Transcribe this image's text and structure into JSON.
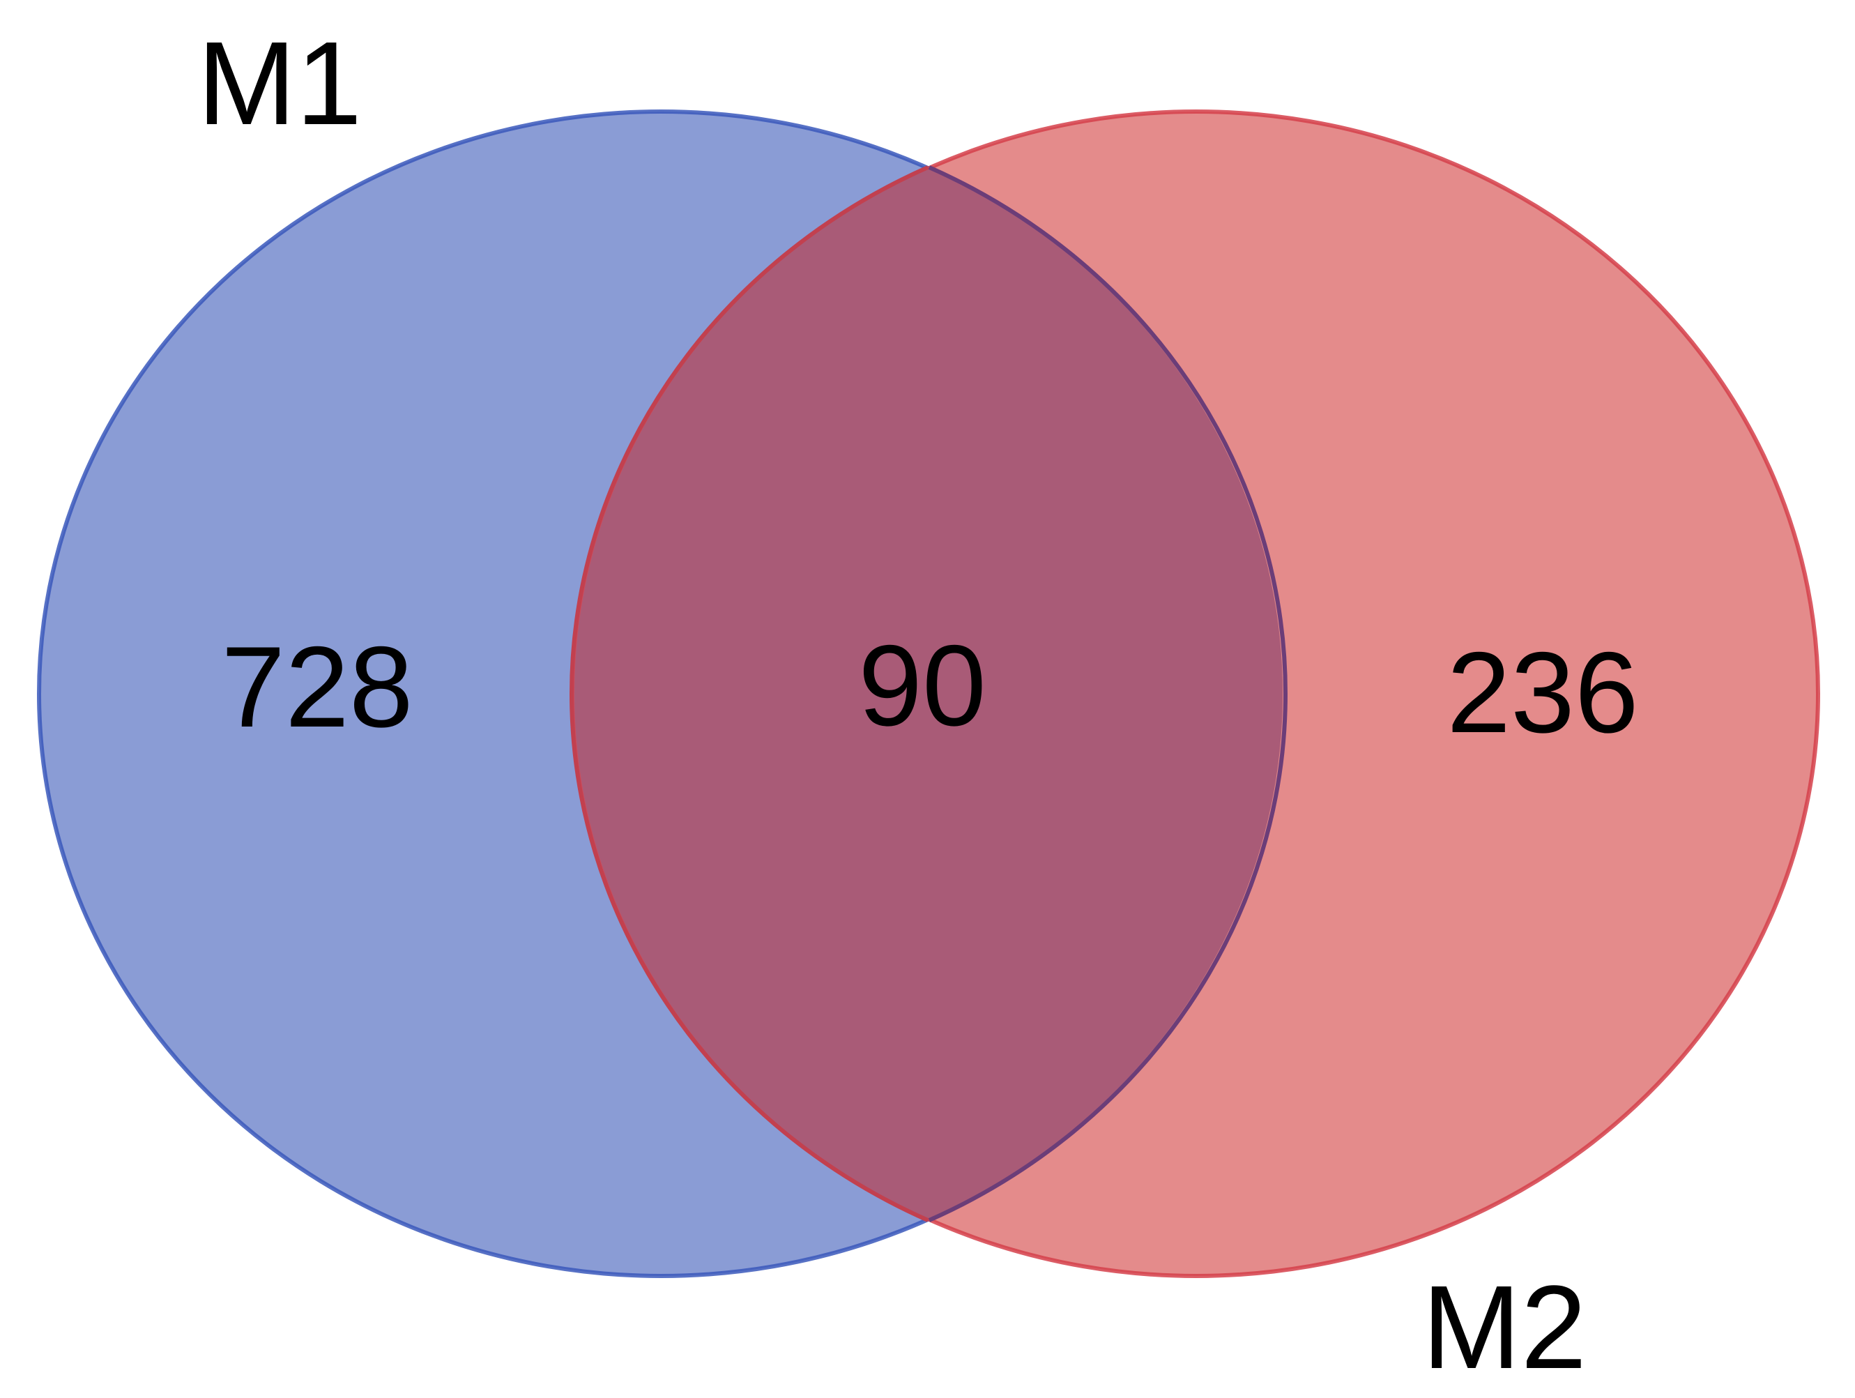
{
  "sets": [
    {
      "name": "M1",
      "color": "#3a58bb",
      "fill": "#8a9cd5",
      "count": "728"
    },
    {
      "name": "M2",
      "color": "#d5404a",
      "fill": "#e48b8b",
      "count": "236"
    }
  ],
  "intersection": {
    "count": "90",
    "color": "#a95b77"
  }
}
